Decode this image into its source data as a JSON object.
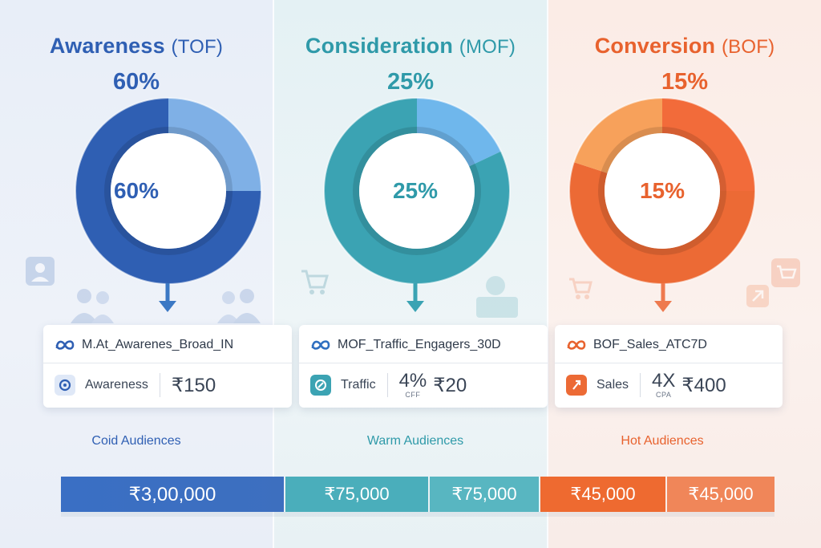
{
  "colors": {
    "tof": "#2f5fb3",
    "tof_light": "#7fb0e6",
    "mof": "#3ba3b3",
    "mof_light": "#6fb7ec",
    "bof": "#ec6a35",
    "bof_light": "#f7a15b"
  },
  "stages": [
    {
      "title": "Awareness",
      "tag": "(TOF)",
      "percent_top": "60%",
      "percent_center": "60%",
      "campaign_name": "M.At_Awarenes_Broad_IN",
      "objective": "Awareness",
      "objective_icon": "awareness-icon",
      "metric_value": "",
      "metric_label": "",
      "budget": "₹150",
      "audience": "Coid Audiences"
    },
    {
      "title": "Consideration",
      "tag": "(MOF)",
      "percent_top": "25%",
      "percent_center": "25%",
      "campaign_name": "MOF_Traffic_Engagers_30D",
      "objective": "Traffic",
      "objective_icon": "traffic-icon",
      "metric_value": "4%",
      "metric_label": "CFF",
      "budget": "₹20",
      "audience": "Warm Audiences"
    },
    {
      "title": "Conversion",
      "tag": "(BOF)",
      "percent_top": "15%",
      "percent_center": "15%",
      "campaign_name": "BOF_Sales_ATC7D",
      "objective": "Sales",
      "objective_icon": "sales-icon",
      "metric_value": "4X",
      "metric_label": "CPA",
      "budget": "₹400",
      "audience": "Hot Audiences"
    }
  ],
  "budget_bar": [
    "₹3,00,000",
    "₹75,000",
    "₹75,000",
    "₹45,000",
    "₹45,000"
  ],
  "chart_data": [
    {
      "type": "pie",
      "center_label": "60%",
      "slices": [
        {
          "value": 25,
          "color": "#7fb0e6"
        },
        {
          "value": 75,
          "color": "#2f5fb3"
        }
      ]
    },
    {
      "type": "pie",
      "center_label": "25%",
      "slices": [
        {
          "value": 18,
          "color": "#6fb7ec"
        },
        {
          "value": 82,
          "color": "#3ba3b3"
        }
      ]
    },
    {
      "type": "pie",
      "center_label": "15%",
      "slices": [
        {
          "value": 25,
          "color": "#f26b3a"
        },
        {
          "value": 55,
          "color": "#ec6a35"
        },
        {
          "value": 20,
          "color": "#f7a15b"
        }
      ]
    }
  ]
}
